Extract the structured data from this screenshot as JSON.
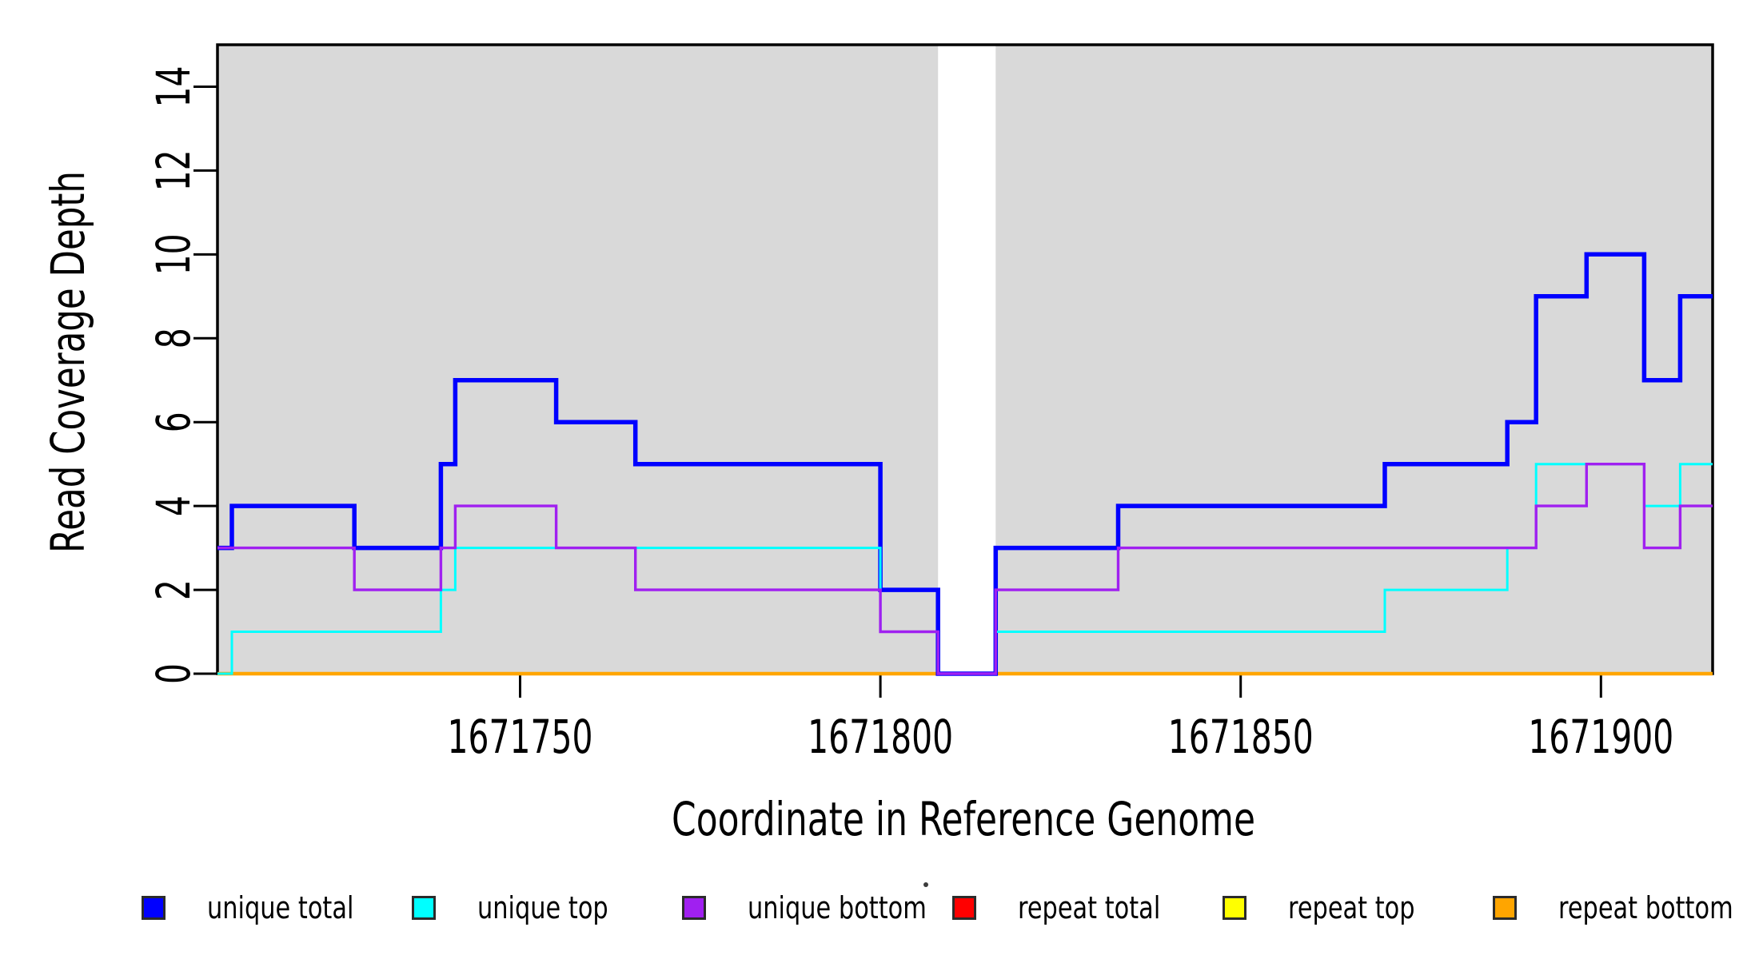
{
  "window": {
    "background": "#ffffff"
  },
  "chart_data": {
    "type": "line",
    "subtype": "step",
    "title": "",
    "xlabel": "Coordinate in Reference Genome",
    "ylabel": "Read Coverage Depth",
    "xlim": [
      1671708,
      1671915.5
    ],
    "ylim": [
      0,
      15
    ],
    "x_ticks": [
      1671750,
      1671800,
      1671850,
      1671900
    ],
    "y_ticks": [
      0,
      2,
      4,
      6,
      8,
      10,
      12,
      14
    ],
    "grid": "off",
    "panel_background": "#d9d9d9",
    "shaded_regions": [
      [
        1671708,
        1671808
      ],
      [
        1671816,
        1671915.5
      ]
    ],
    "uncovered_gap": [
      1671808,
      1671816
    ],
    "axis_color": "#000000",
    "series": [
      {
        "name": "repeat total",
        "color": "#ff0000",
        "line_width": 4,
        "steps": [
          [
            1671708,
            0
          ]
        ]
      },
      {
        "name": "repeat top",
        "color": "#ffff00",
        "line_width": 4,
        "steps": [
          [
            1671708,
            0
          ]
        ]
      },
      {
        "name": "repeat bottom",
        "color": "#ffa500",
        "line_width": 4.5,
        "steps": [
          [
            1671708,
            0
          ]
        ]
      },
      {
        "name": "unique total",
        "color": "#0000ff",
        "line_width": 5.5,
        "steps": [
          [
            1671708,
            3
          ],
          [
            1671710,
            4
          ],
          [
            1671727,
            3
          ],
          [
            1671739,
            5
          ],
          [
            1671741,
            7
          ],
          [
            1671755,
            6
          ],
          [
            1671766,
            5
          ],
          [
            1671800,
            2
          ],
          [
            1671808,
            0
          ],
          [
            1671816,
            3
          ],
          [
            1671833,
            4
          ],
          [
            1671870,
            5
          ],
          [
            1671887,
            6
          ],
          [
            1671891,
            9
          ],
          [
            1671898,
            10
          ],
          [
            1671906,
            7
          ],
          [
            1671911,
            9
          ]
        ]
      },
      {
        "name": "unique top",
        "color": "#00ffff",
        "line_width": 3,
        "steps": [
          [
            1671708,
            0
          ],
          [
            1671710,
            1
          ],
          [
            1671739,
            2
          ],
          [
            1671741,
            3
          ],
          [
            1671800,
            1
          ],
          [
            1671808,
            0
          ],
          [
            1671816,
            1
          ],
          [
            1671870,
            2
          ],
          [
            1671887,
            3
          ],
          [
            1671891,
            5
          ],
          [
            1671906,
            4
          ],
          [
            1671911,
            5
          ]
        ]
      },
      {
        "name": "unique bottom",
        "color": "#a020f0",
        "line_width": 3.4,
        "steps": [
          [
            1671708,
            3
          ],
          [
            1671727,
            2
          ],
          [
            1671739,
            3
          ],
          [
            1671741,
            4
          ],
          [
            1671755,
            3
          ],
          [
            1671766,
            2
          ],
          [
            1671800,
            1
          ],
          [
            1671808,
            0
          ],
          [
            1671816,
            2
          ],
          [
            1671833,
            3
          ],
          [
            1671891,
            4
          ],
          [
            1671898,
            5
          ],
          [
            1671906,
            3
          ],
          [
            1671911,
            4
          ]
        ]
      }
    ],
    "legend": {
      "position": "bottom",
      "items": [
        {
          "label": "unique total",
          "color": "#0000ff"
        },
        {
          "label": "unique top",
          "color": "#00ffff"
        },
        {
          "label": "unique bottom",
          "color": "#a020f0"
        },
        {
          "label": "repeat total",
          "color": "#ff0000"
        },
        {
          "label": "repeat top",
          "color": "#ffff00"
        },
        {
          "label": "repeat bottom",
          "color": "#ffa500"
        }
      ]
    }
  }
}
